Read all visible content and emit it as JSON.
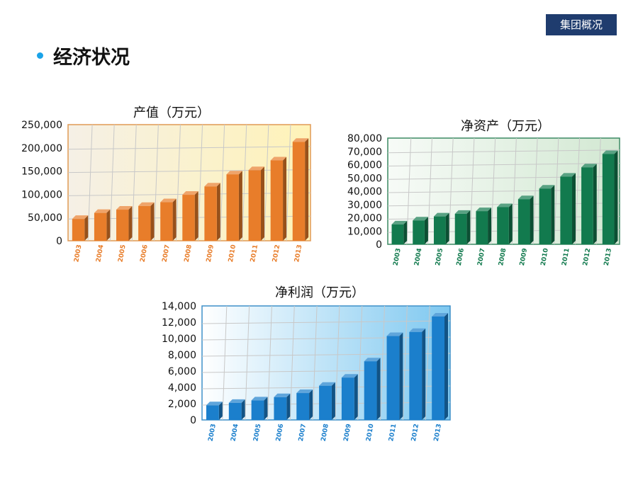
{
  "header": {
    "section_tag": "集团概况",
    "title": "经济状况"
  },
  "colors": {
    "tag_bg": "#1f3c6e",
    "bullet": "#1aa3e8",
    "orange": "#e87d2a",
    "green": "#127a4e",
    "blue": "#1b7fcc"
  },
  "chart_data": [
    {
      "type": "bar",
      "title": "产值（万元）",
      "categories": [
        "2003",
        "2004",
        "2005",
        "2006",
        "2007",
        "2008",
        "2009",
        "2010",
        "2011",
        "2012",
        "2013"
      ],
      "series": [
        {
          "values": [
            47000,
            60000,
            67000,
            75000,
            83000,
            99000,
            117000,
            143000,
            152000,
            173000,
            213000
          ]
        }
      ],
      "ylim": [
        0,
        250000
      ],
      "yticks": [
        "0",
        "50,000",
        "100,000",
        "150,000",
        "200,000",
        "250,000"
      ],
      "color": "#e87d2a",
      "grid": true
    },
    {
      "type": "bar",
      "title": "净资产（万元）",
      "categories": [
        "2003",
        "2004",
        "2005",
        "2006",
        "2007",
        "2008",
        "2009",
        "2010",
        "2011",
        "2012",
        "2013"
      ],
      "series": [
        {
          "values": [
            15000,
            18000,
            21000,
            23000,
            25000,
            28000,
            34000,
            42000,
            51000,
            58000,
            68000
          ]
        }
      ],
      "ylim": [
        0,
        80000
      ],
      "yticks": [
        "0",
        "10,000",
        "20,000",
        "30,000",
        "40,000",
        "50,000",
        "60,000",
        "70,000",
        "80,000"
      ],
      "color": "#127a4e",
      "grid": true
    },
    {
      "type": "bar",
      "title": "净利润（万元）",
      "categories": [
        "2003",
        "2004",
        "2005",
        "2006",
        "2007",
        "2008",
        "2009",
        "2010",
        "2011",
        "2012",
        "2013"
      ],
      "series": [
        {
          "values": [
            1800,
            2100,
            2400,
            2800,
            3300,
            4200,
            5200,
            7200,
            10300,
            10800,
            12700
          ]
        }
      ],
      "ylim": [
        0,
        14000
      ],
      "yticks": [
        "0",
        "2,000",
        "4,000",
        "6,000",
        "8,000",
        "10,000",
        "12,000",
        "14,000"
      ],
      "color": "#1b7fcc",
      "grid": true
    }
  ]
}
